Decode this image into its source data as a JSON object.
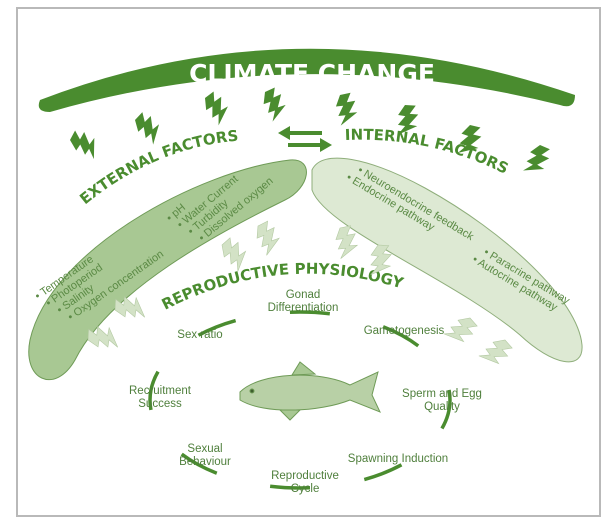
{
  "title": "CLIMATE CHANGE",
  "external": {
    "heading": "EXTERNAL FACTORS",
    "group_a": [
      "pH",
      "Water Current",
      "Turbidity",
      "Dissolved oxygen"
    ],
    "group_b": [
      "Temperature",
      "Photoperiod",
      "Salinity",
      "Oxygen concentration"
    ]
  },
  "internal": {
    "heading": "INTERNAL FACTORS",
    "group_a": [
      "Neuroendocrine feedback",
      "Endocrine pathway"
    ],
    "group_b": [
      "Paracrine pathway",
      "Autocrine pathway"
    ]
  },
  "physiology": {
    "heading": "REPRODUCTIVE PHYSIOLOGY",
    "cycle": {
      "gonad_1": "Gonad",
      "gonad_2": "Differentiation",
      "gametogenesis": "Gametogenesis",
      "quality_1": "Sperm and Egg",
      "quality_2": "Quality",
      "spawning": "Spawning Induction",
      "cycle_1": "Reproductive",
      "cycle_2": "Cycle",
      "behaviour_1": "Sexual",
      "behaviour_2": "Behaviour",
      "recruit_1": "Recruitment",
      "recruit_2": "Success",
      "sex_ratio": "Sex ratio"
    }
  },
  "colors": {
    "dark_green": "#4a8c2f",
    "external_fill": "#a8c893",
    "internal_fill": "#dde9d3",
    "text_green": "#5b8a45"
  }
}
